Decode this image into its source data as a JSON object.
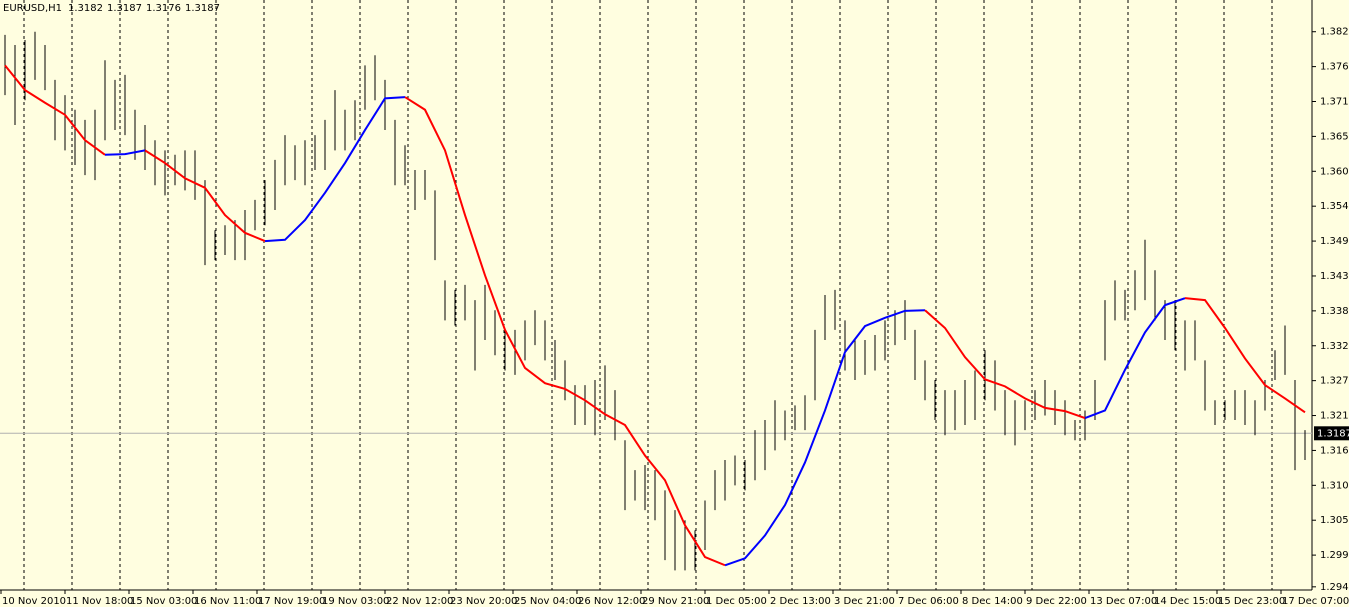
{
  "chart_data": {
    "type": "ohlc",
    "title": "EURUSD,H1",
    "last_quote": [
      1.3182,
      1.3187,
      1.3176,
      1.3187
    ],
    "x_labels": [
      "10 Nov 2010",
      "11 Nov 18:00",
      "15 Nov 03:00",
      "16 Nov 11:00",
      "17 Nov 19:00",
      "19 Nov 03:00",
      "22 Nov 12:00",
      "23 Nov 20:00",
      "25 Nov 04:00",
      "26 Nov 12:00",
      "29 Nov 21:00",
      "1 Dec 05:00",
      "2 Dec 13:00",
      "3 Dec 21:00",
      "7 Dec 06:00",
      "8 Dec 14:00",
      "9 Dec 22:00",
      "13 Dec 07:00",
      "14 Dec 15:00",
      "15 Dec 23:00",
      "17 Dec 07:00"
    ],
    "highs": [
      1.3815,
      1.3799,
      1.3807,
      1.382,
      1.3799,
      1.3744,
      1.372,
      1.3697,
      1.3681,
      1.3697,
      1.3775,
      1.3744,
      1.3752,
      1.3697,
      1.3673,
      1.3649,
      1.3633,
      1.3626,
      1.3633,
      1.3633,
      1.3586,
      1.3507,
      1.3515,
      1.3523,
      1.3539,
      1.3555,
      1.3586,
      1.3618,
      1.3657,
      1.3641,
      1.3649,
      1.3657,
      1.3681,
      1.3728,
      1.3697,
      1.3712,
      1.3767,
      1.3783,
      1.3744,
      1.3681,
      1.3641,
      1.3602,
      1.3602,
      1.357,
      1.3428,
      1.3413,
      1.3421,
      1.3397,
      1.3421,
      1.3381,
      1.335,
      1.335,
      1.3365,
      1.3381,
      1.3365,
      1.3334,
      1.3302,
      1.3263,
      1.3263,
      1.3271,
      1.3294,
      1.3255,
      1.3176,
      1.3129,
      1.3137,
      1.3129,
      1.3097,
      1.3066,
      1.305,
      1.3034,
      1.3081,
      1.3129,
      1.3145,
      1.3152,
      1.3145,
      1.3192,
      1.3208,
      1.3239,
      1.3223,
      1.3231,
      1.3247,
      1.335,
      1.3405,
      1.3413,
      1.3365,
      1.3334,
      1.3334,
      1.3342,
      1.3365,
      1.3381,
      1.3397,
      1.335,
      1.3302,
      1.3271,
      1.3255,
      1.3255,
      1.3271,
      1.3286,
      1.3318,
      1.3302,
      1.3255,
      1.3239,
      1.3239,
      1.3255,
      1.3271,
      1.3255,
      1.3239,
      1.3208,
      1.3223,
      1.3271,
      1.3397,
      1.3428,
      1.3413,
      1.3444,
      1.3492,
      1.3444,
      1.3397,
      1.3397,
      1.3365,
      1.3365,
      1.3302,
      1.3239,
      1.3239,
      1.3255,
      1.3255,
      1.3239,
      1.3271,
      1.3318,
      1.3357,
      1.3271,
      1.3192
    ],
    "lows": [
      1.372,
      1.3673,
      1.3712,
      1.3744,
      1.3728,
      1.3649,
      1.3633,
      1.361,
      1.3594,
      1.3586,
      1.3649,
      1.3665,
      1.3657,
      1.3618,
      1.3602,
      1.3578,
      1.3562,
      1.3578,
      1.357,
      1.3555,
      1.3452,
      1.346,
      1.3468,
      1.346,
      1.346,
      1.3507,
      1.3515,
      1.3539,
      1.3578,
      1.3586,
      1.3578,
      1.3602,
      1.3602,
      1.3633,
      1.3633,
      1.3649,
      1.3697,
      1.3712,
      1.3665,
      1.3578,
      1.3578,
      1.3539,
      1.3555,
      1.346,
      1.3365,
      1.3357,
      1.3365,
      1.3286,
      1.3334,
      1.331,
      1.3286,
      1.3279,
      1.3302,
      1.3326,
      1.3302,
      1.3271,
      1.3239,
      1.32,
      1.32,
      1.3184,
      1.3208,
      1.3176,
      1.3066,
      1.3081,
      1.3066,
      1.305,
      1.2987,
      1.2971,
      1.2971,
      1.2971,
      1.3003,
      1.3066,
      1.3081,
      1.3105,
      1.3097,
      1.3113,
      1.3129,
      1.316,
      1.3176,
      1.3192,
      1.3192,
      1.3239,
      1.3334,
      1.335,
      1.3286,
      1.3271,
      1.3279,
      1.3286,
      1.3302,
      1.3326,
      1.3334,
      1.3271,
      1.3239,
      1.3208,
      1.3184,
      1.3192,
      1.32,
      1.3208,
      1.3239,
      1.3223,
      1.3184,
      1.3168,
      1.3192,
      1.3208,
      1.3215,
      1.32,
      1.3184,
      1.3176,
      1.3176,
      1.3208,
      1.3302,
      1.3365,
      1.3365,
      1.3381,
      1.3397,
      1.3365,
      1.3334,
      1.3318,
      1.3286,
      1.3302,
      1.3223,
      1.32,
      1.3208,
      1.3208,
      1.32,
      1.3184,
      1.3223,
      1.3271,
      1.3279,
      1.3129,
      1.3145
    ],
    "bar_color": "#000000",
    "moving_average": {
      "values": [
        1.3767,
        1.3728,
        1.3708,
        1.3689,
        1.3649,
        1.3626,
        1.3627,
        1.3633,
        1.3613,
        1.3589,
        1.3574,
        1.3531,
        1.3503,
        1.349,
        1.3492,
        1.3523,
        1.3566,
        1.3613,
        1.3665,
        1.3715,
        1.3717,
        1.3697,
        1.3633,
        1.3531,
        1.3436,
        1.335,
        1.329,
        1.3266,
        1.3257,
        1.3239,
        1.3217,
        1.32,
        1.3152,
        1.3113,
        1.3042,
        1.2992,
        1.2979,
        1.299,
        1.3026,
        1.3074,
        1.3141,
        1.3223,
        1.3315,
        1.3356,
        1.3369,
        1.338,
        1.3381,
        1.3353,
        1.3307,
        1.3272,
        1.3261,
        1.3242,
        1.3227,
        1.3222,
        1.3211,
        1.3223,
        1.3287,
        1.3346,
        1.3389,
        1.34,
        1.3397,
        1.3353,
        1.3305,
        1.3263,
        1.3242,
        1.322
      ],
      "up_color": "#0000ff",
      "down_color": "#ff0000"
    },
    "current_price": 1.3187,
    "ylim": [
      1.294,
      1.387
    ],
    "yticks": [
      {
        "value": 1.382,
        "label": "1.3820"
      },
      1.3765,
      {
        "value": 1.371,
        "label": "1.3710"
      },
      1.3655,
      {
        "value": 1.36,
        "label": "1.3600"
      },
      1.3545,
      {
        "value": 1.349,
        "label": "1.3490"
      },
      1.3435,
      {
        "value": 1.338,
        "label": "1.3380"
      },
      1.3325,
      {
        "value": 1.327,
        "label": "1.3270"
      },
      1.3215,
      {
        "value": 1.316,
        "label": "1.3160"
      },
      1.3105,
      {
        "value": 1.305,
        "label": "1.3050"
      },
      1.2995,
      1.2945
    ]
  }
}
